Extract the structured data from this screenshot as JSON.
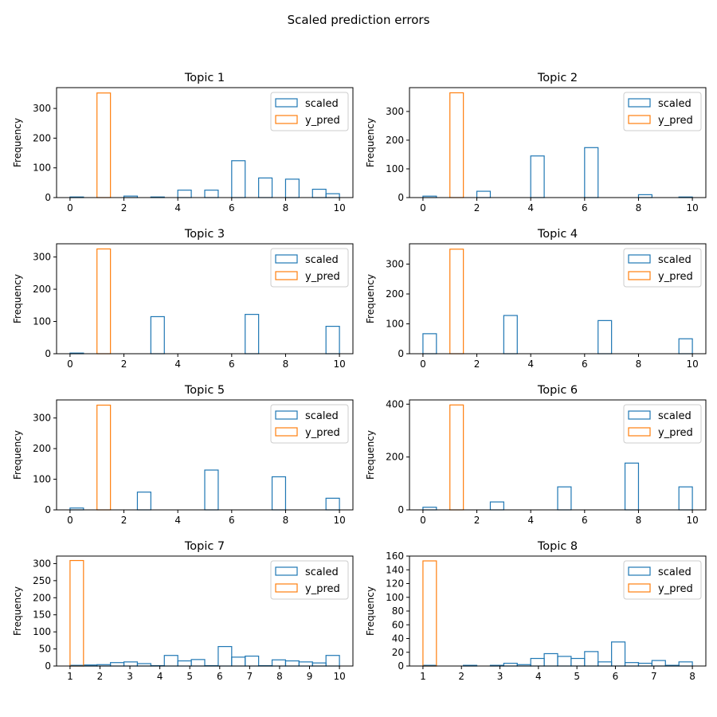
{
  "figure": {
    "title": "Scaled prediction errors"
  },
  "colors": {
    "scaled": "#1f77b4",
    "y_pred": "#ff7f0e",
    "axis": "#000000"
  },
  "chart_data": [
    {
      "type": "bar",
      "title": "Topic 1",
      "xlabel": "",
      "ylabel": "Frequency",
      "xlim": [
        -0.5,
        10.5
      ],
      "ylim": [
        0,
        370
      ],
      "xticks": [
        0,
        2,
        4,
        6,
        8,
        10
      ],
      "yticks": [
        0,
        100,
        200,
        300
      ],
      "bin_width": 0.5,
      "legend": "top-right",
      "series": [
        {
          "name": "scaled",
          "bins": [
            [
              0,
              2
            ],
            [
              2,
              5
            ],
            [
              3,
              2
            ],
            [
              4,
              25
            ],
            [
              5,
              25
            ],
            [
              6,
              124
            ],
            [
              7,
              66
            ],
            [
              8,
              62
            ],
            [
              9,
              28
            ],
            [
              9.5,
              13
            ]
          ]
        },
        {
          "name": "y_pred",
          "bins": [
            [
              1,
              352
            ]
          ]
        }
      ]
    },
    {
      "type": "bar",
      "title": "Topic 2",
      "xlabel": "",
      "ylabel": "Frequency",
      "xlim": [
        -0.5,
        10.5
      ],
      "ylim": [
        0,
        383
      ],
      "xticks": [
        0,
        2,
        4,
        6,
        8,
        10
      ],
      "yticks": [
        0,
        100,
        200,
        300
      ],
      "bin_width": 0.5,
      "legend": "top-right",
      "series": [
        {
          "name": "scaled",
          "bins": [
            [
              0,
              5
            ],
            [
              2,
              22
            ],
            [
              4,
              145
            ],
            [
              6,
              174
            ],
            [
              8,
              10
            ],
            [
              9.5,
              2
            ]
          ]
        },
        {
          "name": "y_pred",
          "bins": [
            [
              1,
              365
            ]
          ]
        }
      ]
    },
    {
      "type": "bar",
      "title": "Topic 3",
      "xlabel": "",
      "ylabel": "Frequency",
      "xlim": [
        -0.5,
        10.5
      ],
      "ylim": [
        0,
        341
      ],
      "xticks": [
        0,
        2,
        4,
        6,
        8,
        10
      ],
      "yticks": [
        0,
        100,
        200,
        300
      ],
      "bin_width": 0.5,
      "legend": "top-right",
      "series": [
        {
          "name": "scaled",
          "bins": [
            [
              0,
              2
            ],
            [
              3,
              115
            ],
            [
              6.5,
              122
            ],
            [
              9.5,
              85
            ]
          ]
        },
        {
          "name": "y_pred",
          "bins": [
            [
              1,
              325
            ]
          ]
        }
      ]
    },
    {
      "type": "bar",
      "title": "Topic 4",
      "xlabel": "",
      "ylabel": "Frequency",
      "xlim": [
        -0.5,
        10.5
      ],
      "ylim": [
        0,
        368
      ],
      "xticks": [
        0,
        2,
        4,
        6,
        8,
        10
      ],
      "yticks": [
        0,
        100,
        200,
        300
      ],
      "bin_width": 0.5,
      "legend": "top-right",
      "series": [
        {
          "name": "scaled",
          "bins": [
            [
              0,
              67
            ],
            [
              3,
              128
            ],
            [
              6.5,
              111
            ],
            [
              9.5,
              50
            ]
          ]
        },
        {
          "name": "y_pred",
          "bins": [
            [
              1,
              350
            ]
          ]
        }
      ]
    },
    {
      "type": "bar",
      "title": "Topic 5",
      "xlabel": "",
      "ylabel": "Frequency",
      "xlim": [
        -0.5,
        10.5
      ],
      "ylim": [
        0,
        359
      ],
      "xticks": [
        0,
        2,
        4,
        6,
        8,
        10
      ],
      "yticks": [
        0,
        100,
        200,
        300
      ],
      "bin_width": 0.5,
      "legend": "top-right",
      "series": [
        {
          "name": "scaled",
          "bins": [
            [
              0,
              6
            ],
            [
              2.5,
              58
            ],
            [
              5,
              130
            ],
            [
              7.5,
              108
            ],
            [
              9.5,
              38
            ]
          ]
        },
        {
          "name": "y_pred",
          "bins": [
            [
              1,
              342
            ]
          ]
        }
      ]
    },
    {
      "type": "bar",
      "title": "Topic 6",
      "xlabel": "",
      "ylabel": "Frequency",
      "xlim": [
        -0.5,
        10.5
      ],
      "ylim": [
        0,
        416
      ],
      "xticks": [
        0,
        2,
        4,
        6,
        8,
        10
      ],
      "yticks": [
        0,
        200,
        400
      ],
      "bin_width": 0.5,
      "legend": "top-right",
      "series": [
        {
          "name": "scaled",
          "bins": [
            [
              0,
              10
            ],
            [
              2.5,
              30
            ],
            [
              5,
              87
            ],
            [
              7.5,
              177
            ],
            [
              9.5,
              87
            ]
          ]
        },
        {
          "name": "y_pred",
          "bins": [
            [
              1,
              397
            ]
          ]
        }
      ]
    },
    {
      "type": "bar",
      "title": "Topic 7",
      "xlabel": "",
      "ylabel": "Frequency",
      "xlim": [
        0.55,
        10.45
      ],
      "ylim": [
        0,
        322
      ],
      "xticks": [
        1,
        2,
        3,
        4,
        5,
        6,
        7,
        8,
        9,
        10
      ],
      "yticks": [
        0,
        50,
        100,
        150,
        200,
        250,
        300
      ],
      "bin_width": 0.45,
      "legend": "top-right",
      "series": [
        {
          "name": "scaled",
          "bins": [
            [
              1,
              2
            ],
            [
              1.45,
              3
            ],
            [
              1.9,
              4
            ],
            [
              2.35,
              10
            ],
            [
              2.8,
              12
            ],
            [
              3.25,
              7
            ],
            [
              3.7,
              1
            ],
            [
              4.15,
              31
            ],
            [
              4.6,
              15
            ],
            [
              5.05,
              19
            ],
            [
              5.5,
              1
            ],
            [
              5.95,
              57
            ],
            [
              6.4,
              26
            ],
            [
              6.85,
              29
            ],
            [
              7.3,
              1
            ],
            [
              7.75,
              18
            ],
            [
              8.2,
              15
            ],
            [
              8.65,
              12
            ],
            [
              9.1,
              9
            ],
            [
              9.55,
              31
            ]
          ]
        },
        {
          "name": "y_pred",
          "bins": [
            [
              1,
              309
            ]
          ]
        }
      ]
    },
    {
      "type": "bar",
      "title": "Topic 8",
      "xlabel": "",
      "ylabel": "Frequency",
      "xlim": [
        0.65,
        8.35
      ],
      "ylim": [
        0,
        160
      ],
      "xticks": [
        1,
        2,
        3,
        4,
        5,
        6,
        7,
        8
      ],
      "yticks": [
        0,
        20,
        40,
        60,
        80,
        100,
        120,
        140,
        160
      ],
      "bin_width": 0.35,
      "legend": "top-right",
      "series": [
        {
          "name": "scaled",
          "bins": [
            [
              1,
              1
            ],
            [
              1.35,
              0
            ],
            [
              1.7,
              0
            ],
            [
              2.05,
              1
            ],
            [
              2.4,
              0
            ],
            [
              2.75,
              1
            ],
            [
              3.1,
              4
            ],
            [
              3.45,
              2
            ],
            [
              3.8,
              11
            ],
            [
              4.15,
              18
            ],
            [
              4.5,
              14
            ],
            [
              4.85,
              11
            ],
            [
              5.2,
              21
            ],
            [
              5.55,
              6
            ],
            [
              5.9,
              35
            ],
            [
              6.25,
              5
            ],
            [
              6.6,
              4
            ],
            [
              6.95,
              8
            ],
            [
              7.3,
              1
            ],
            [
              7.65,
              6
            ]
          ]
        },
        {
          "name": "y_pred",
          "bins": [
            [
              1,
              153
            ]
          ]
        }
      ]
    }
  ]
}
